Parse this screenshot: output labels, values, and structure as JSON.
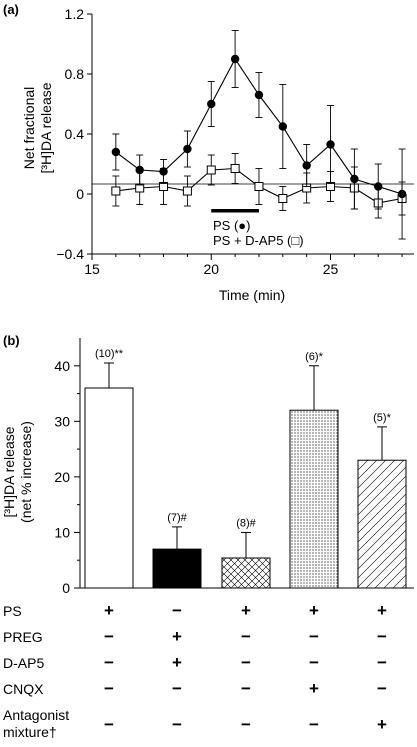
{
  "chart_data": [
    {
      "panel": "(a)",
      "type": "line",
      "ylabel_line1": "Net fractional",
      "ylabel_line2": "[³H]DA release",
      "xlabel": "Time (min)",
      "xlim": [
        15,
        28.5
      ],
      "ylim": [
        -0.4,
        1.2
      ],
      "xticks": [
        15,
        20,
        25
      ],
      "yticks": [
        -0.4,
        0,
        0.4,
        0.8,
        1.2
      ],
      "bar_label": "PS (●)",
      "legend_ps_ap5": "PS + D-AP5 (□)",
      "stimulus_bar": [
        20,
        22
      ],
      "series": [
        {
          "marker": "filled-circle",
          "x": [
            16,
            17,
            18,
            19,
            20,
            21,
            22,
            23,
            24,
            25,
            26,
            27,
            28
          ],
          "y": [
            0.28,
            0.16,
            0.15,
            0.3,
            0.6,
            0.9,
            0.66,
            0.45,
            0.19,
            0.33,
            0.1,
            0.05,
            0.0
          ],
          "err": [
            0.12,
            0.1,
            0.08,
            0.12,
            0.15,
            0.19,
            0.15,
            0.28,
            0.14,
            0.26,
            0.2,
            0.15,
            0.3
          ]
        },
        {
          "marker": "open-square",
          "x": [
            16,
            17,
            18,
            19,
            20,
            21,
            22,
            23,
            24,
            25,
            26,
            27,
            28
          ],
          "y": [
            0.02,
            0.04,
            0.05,
            0.02,
            0.16,
            0.17,
            0.05,
            -0.03,
            0.04,
            0.05,
            0.04,
            -0.06,
            -0.03
          ],
          "err": [
            0.1,
            0.11,
            0.12,
            0.1,
            0.1,
            0.1,
            0.12,
            0.08,
            0.1,
            0.1,
            0.14,
            0.1,
            0.11
          ]
        }
      ]
    },
    {
      "panel": "(b)",
      "type": "bar",
      "ylabel_line1": "[³H]DA release",
      "ylabel_line2": "(net % increase)",
      "ylim": [
        0,
        45
      ],
      "yticks": [
        0,
        10,
        20,
        30,
        40
      ],
      "values": [
        36,
        7,
        5.4,
        32,
        23
      ],
      "errors": [
        4.5,
        4,
        4.6,
        8,
        6
      ],
      "fills": [
        "white",
        "black",
        "crosshatch",
        "dots",
        "diagonal"
      ],
      "annotations": [
        "(10)**",
        "(7)#",
        "(8)#",
        "(6)*",
        "(5)*"
      ],
      "treatments": [
        {
          "label": "PS",
          "marks": [
            "+",
            "−",
            "+",
            "+",
            "+"
          ]
        },
        {
          "label": "PREG",
          "marks": [
            "−",
            "+",
            "−",
            "−",
            "−"
          ]
        },
        {
          "label": "D-AP5",
          "marks": [
            "−",
            "+",
            "−",
            "−",
            "−"
          ]
        },
        {
          "label": "CNQX",
          "marks": [
            "−",
            "−",
            "−",
            "+",
            "−"
          ]
        },
        {
          "label": "Antagonist",
          "label2": "mixture†",
          "marks": [
            "−",
            "−",
            "−",
            "−",
            "+"
          ]
        }
      ]
    }
  ]
}
